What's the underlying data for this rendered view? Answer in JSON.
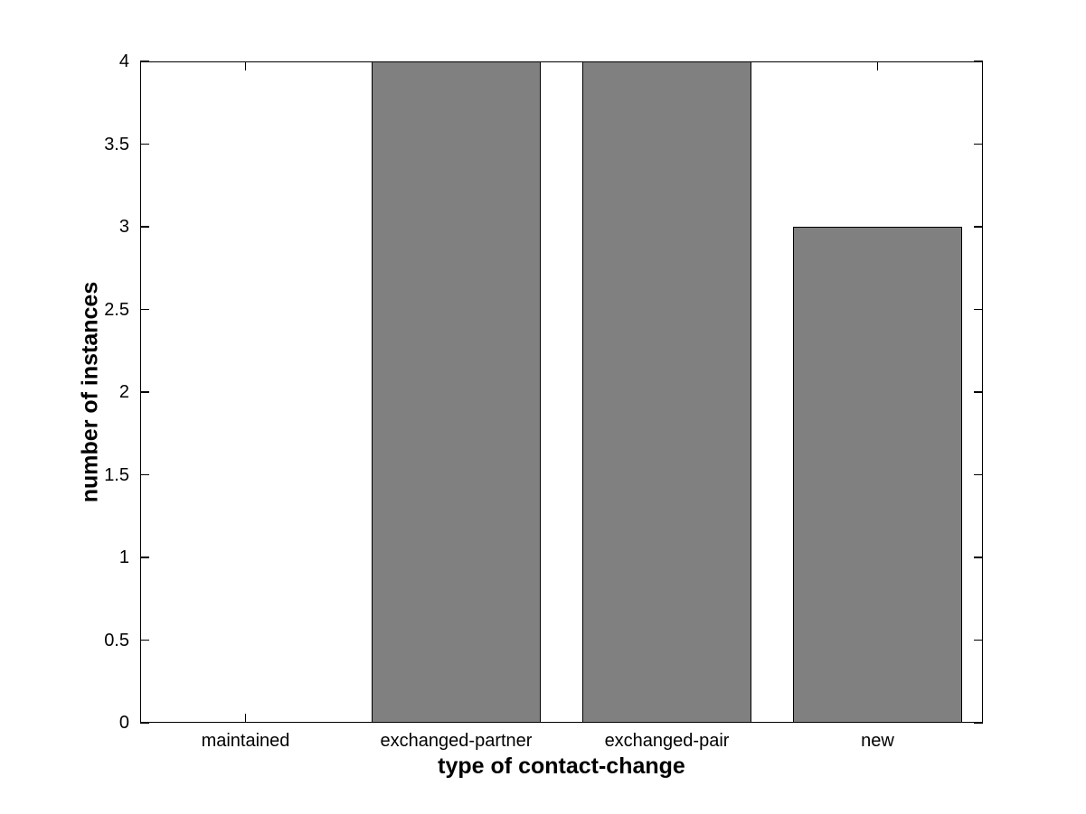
{
  "figure": {
    "background": "#ffffff",
    "axis_color": "#000000",
    "text_color": "#000000"
  },
  "chart_data": {
    "type": "bar",
    "categories": [
      "maintained",
      "exchanged-partner",
      "exchanged-pair",
      "new"
    ],
    "values": [
      0,
      4,
      4,
      3
    ],
    "xlabel": "type of contact-change",
    "ylabel": "number of instances",
    "ylim": [
      0,
      4
    ],
    "yticks": [
      0,
      0.5,
      1,
      1.5,
      2,
      2.5,
      3,
      3.5,
      4
    ],
    "bar_color": "#808080",
    "bar_edge_color": "#000000",
    "bar_width_fraction": 0.8,
    "grid": false,
    "legend_position": "none",
    "tick_direction": "in"
  }
}
